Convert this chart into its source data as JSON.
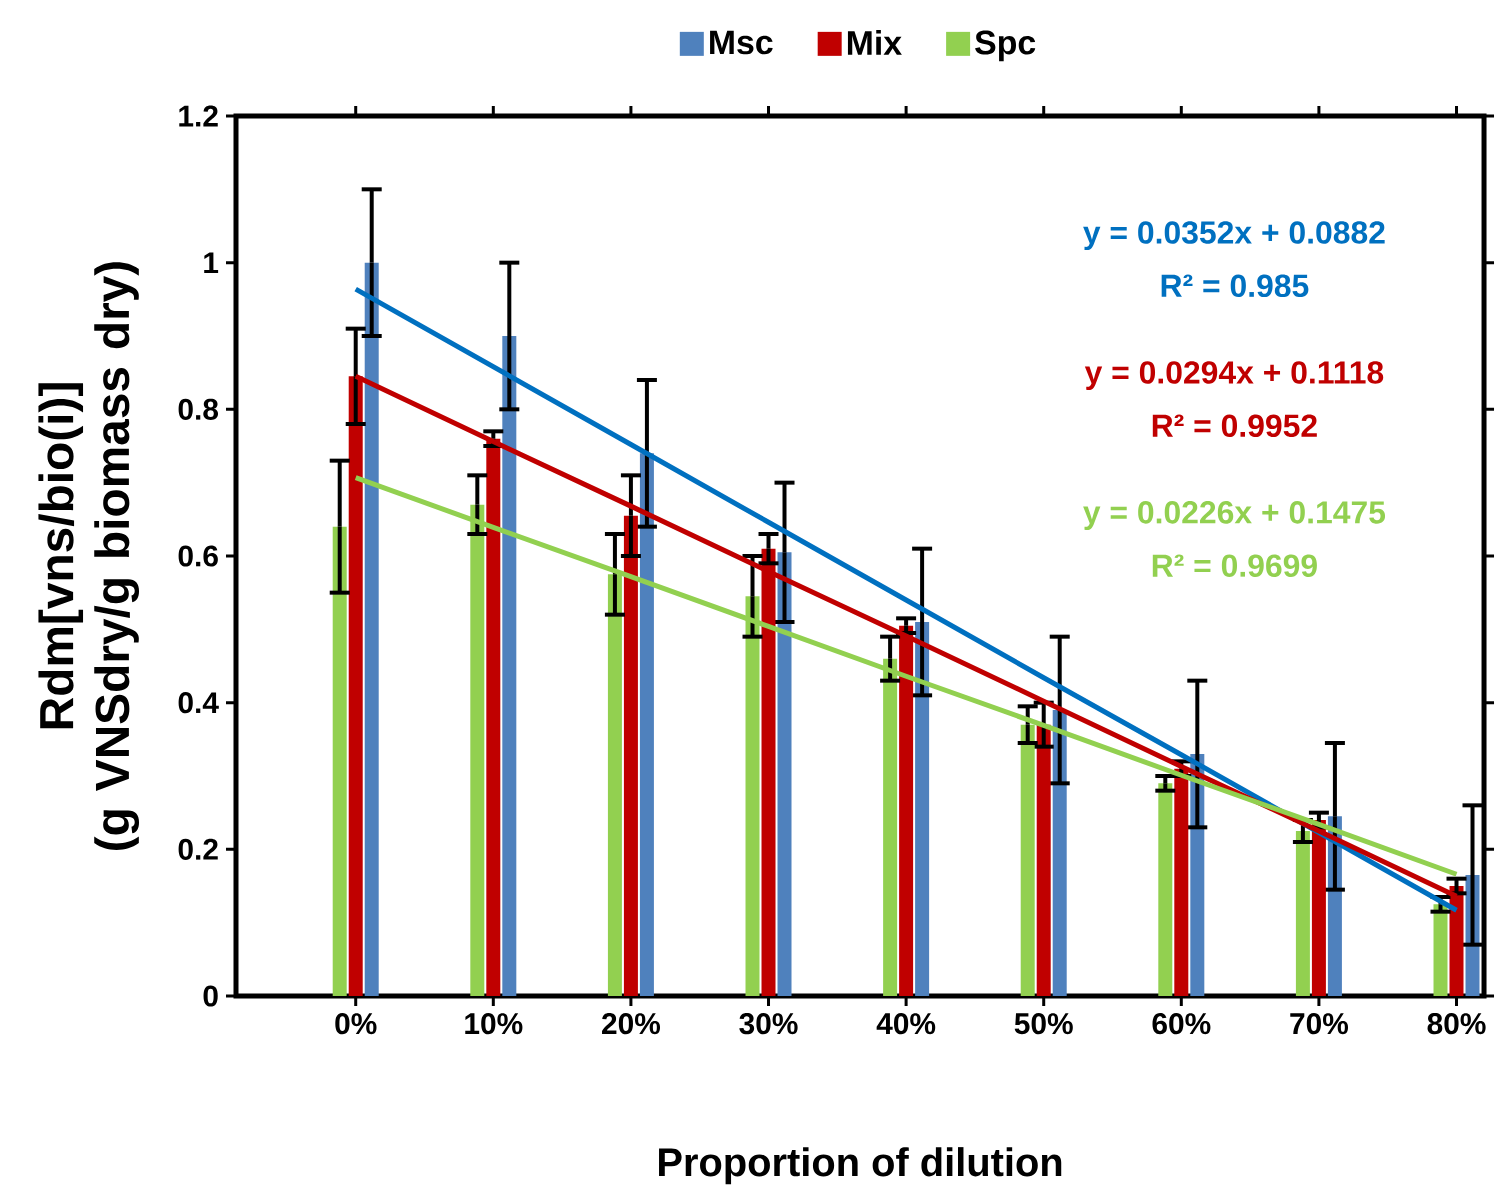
{
  "chart_data": {
    "type": "bar",
    "xlabel": "Proportion of dilution",
    "ylabel": "Rdm[vns/bio(i)] (g VNSdry/g biomass dry)",
    "categories": [
      "0%",
      "10%",
      "20%",
      "30%",
      "40%",
      "50%",
      "60%",
      "70%",
      "80%"
    ],
    "series": [
      {
        "name": "Msc",
        "color": "#4f81bd",
        "values": [
          1.0,
          0.9,
          0.74,
          0.605,
          0.51,
          0.39,
          0.33,
          0.245,
          0.165
        ],
        "errors": [
          0.1,
          0.1,
          0.1,
          0.095,
          0.1,
          0.1,
          0.1,
          0.1,
          0.095
        ]
      },
      {
        "name": "Mix",
        "color": "#c00000",
        "values": [
          0.845,
          0.76,
          0.655,
          0.61,
          0.505,
          0.37,
          0.31,
          0.24,
          0.15
        ],
        "errors": [
          0.065,
          0.01,
          0.055,
          0.02,
          0.01,
          0.03,
          0.01,
          0.01,
          0.01
        ]
      },
      {
        "name": "Spc",
        "color": "#92d050",
        "values": [
          0.64,
          0.67,
          0.575,
          0.545,
          0.46,
          0.37,
          0.29,
          0.225,
          0.125
        ],
        "errors": [
          0.09,
          0.04,
          0.055,
          0.055,
          0.03,
          0.025,
          0.01,
          0.015,
          0.01
        ]
      },
      {
        "type": "line",
        "color": "#0070c0",
        "values": [
          0.964,
          0.858,
          0.752,
          0.646,
          0.54,
          0.434,
          0.329,
          0.223,
          0.117
        ]
      },
      {
        "type": "line",
        "color": "#c00000",
        "values": [
          0.845,
          0.756,
          0.668,
          0.579,
          0.491,
          0.402,
          0.313,
          0.225,
          0.136
        ]
      },
      {
        "type": "line",
        "color": "#92d050",
        "values": [
          0.707,
          0.639,
          0.572,
          0.504,
          0.436,
          0.369,
          0.301,
          0.234,
          0.166
        ]
      }
    ],
    "ylim": [
      0,
      1.2
    ],
    "yticks": [
      0,
      0.2,
      0.4,
      0.6,
      0.8,
      1,
      1.2
    ],
    "grid": false,
    "legend": "top",
    "marker": "none",
    "line_style": "solid",
    "annotations": [
      "y = 0.0352x + 0.0882",
      "R² = 0.985",
      "y = 0.0294x + 0.1118",
      "R² = 0.9952",
      "y = 0.0226x + 0.1475",
      "R² = 0.9699"
    ]
  }
}
